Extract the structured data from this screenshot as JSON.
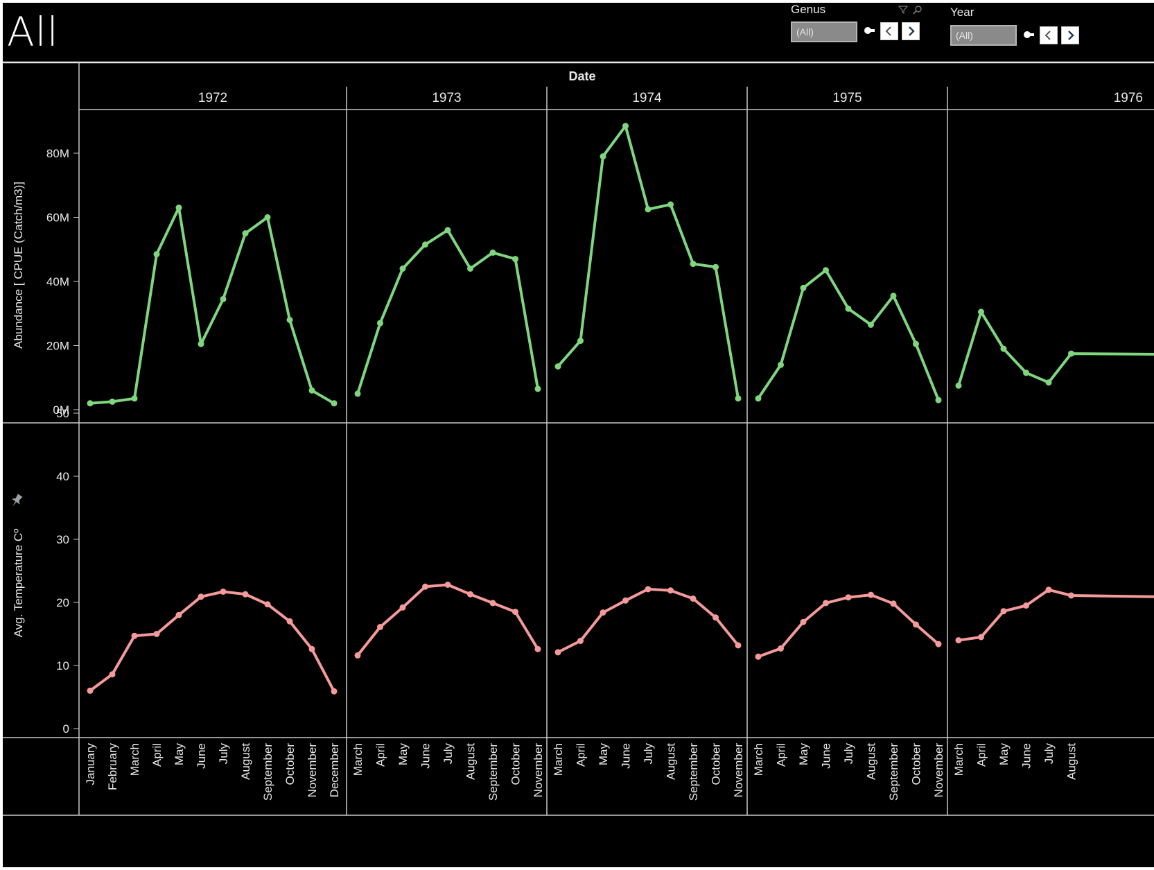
{
  "title": "All",
  "filters": {
    "genus": {
      "label": "Genus",
      "value": "(All)"
    },
    "year": {
      "label": "Year",
      "value": "(All)"
    }
  },
  "colors": {
    "background": "#000000",
    "abundance_line": "#7fd67f",
    "temperature_line": "#f59a9a",
    "divider": "#c8c8c8",
    "text": "#e8e8e8"
  },
  "chart_data": [
    {
      "type": "line",
      "column_header": "Date",
      "ylabel": "Abundance [ CPUE (Catch/m3)]",
      "y_ticks": [
        "0M",
        "20M",
        "40M",
        "60M",
        "80M"
      ],
      "ylim": [
        0,
        90000000
      ],
      "panels": [
        {
          "year": "1972",
          "months": [
            "January",
            "February",
            "March",
            "April",
            "May",
            "June",
            "July",
            "August",
            "September",
            "October",
            "November",
            "December"
          ],
          "values": [
            2000000,
            2500000,
            3500000,
            48500000,
            63000000,
            20500000,
            34500000,
            55000000,
            60000000,
            28000000,
            6000000,
            2000000
          ]
        },
        {
          "year": "1973",
          "months": [
            "March",
            "April",
            "May",
            "June",
            "July",
            "August",
            "September",
            "October",
            "November"
          ],
          "values": [
            5000000,
            27000000,
            44000000,
            51500000,
            56000000,
            44000000,
            49000000,
            47000000,
            6500000
          ]
        },
        {
          "year": "1974",
          "months": [
            "March",
            "April",
            "May",
            "June",
            "July",
            "August",
            "September",
            "October",
            "November"
          ],
          "values": [
            13500000,
            21500000,
            79000000,
            88500000,
            62500000,
            64000000,
            45500000,
            44500000,
            3500000
          ]
        },
        {
          "year": "1975",
          "months": [
            "March",
            "April",
            "May",
            "June",
            "July",
            "August",
            "September",
            "October",
            "November"
          ],
          "values": [
            3500000,
            14000000,
            38000000,
            43500000,
            31500000,
            26500000,
            35500000,
            20500000,
            3000000
          ]
        },
        {
          "year": "1976",
          "months": [
            "March",
            "April",
            "May",
            "June",
            "July",
            "August"
          ],
          "values": [
            7500000,
            30500000,
            19000000,
            11500000,
            8500000,
            17500000
          ]
        }
      ]
    },
    {
      "type": "line",
      "ylabel": "Avg. Temperature Cº",
      "y_ticks": [
        "0",
        "10",
        "20",
        "30",
        "40",
        "50"
      ],
      "ylim": [
        0,
        50
      ],
      "panels": [
        {
          "year": "1972",
          "months": [
            "January",
            "February",
            "March",
            "April",
            "May",
            "June",
            "July",
            "August",
            "September",
            "October",
            "November",
            "December"
          ],
          "values": [
            6.0,
            8.6,
            14.7,
            15.0,
            18.0,
            20.9,
            21.7,
            21.3,
            19.7,
            17.0,
            12.6,
            5.9
          ]
        },
        {
          "year": "1973",
          "months": [
            "March",
            "April",
            "May",
            "June",
            "July",
            "August",
            "September",
            "October",
            "November"
          ],
          "values": [
            11.6,
            16.1,
            19.2,
            22.5,
            22.8,
            21.3,
            19.9,
            18.5,
            12.6
          ]
        },
        {
          "year": "1974",
          "months": [
            "March",
            "April",
            "May",
            "June",
            "July",
            "August",
            "September",
            "October",
            "November"
          ],
          "values": [
            12.1,
            13.9,
            18.4,
            20.3,
            22.1,
            21.9,
            20.6,
            17.6,
            13.2
          ]
        },
        {
          "year": "1975",
          "months": [
            "March",
            "April",
            "May",
            "June",
            "July",
            "August",
            "September",
            "October",
            "November"
          ],
          "values": [
            11.4,
            12.7,
            16.9,
            19.9,
            20.8,
            21.2,
            19.8,
            16.5,
            13.4
          ]
        },
        {
          "year": "1976",
          "months": [
            "March",
            "April",
            "May",
            "June",
            "July",
            "August"
          ],
          "values": [
            14.0,
            14.5,
            18.6,
            19.5,
            22.0,
            21.1
          ]
        }
      ]
    }
  ]
}
